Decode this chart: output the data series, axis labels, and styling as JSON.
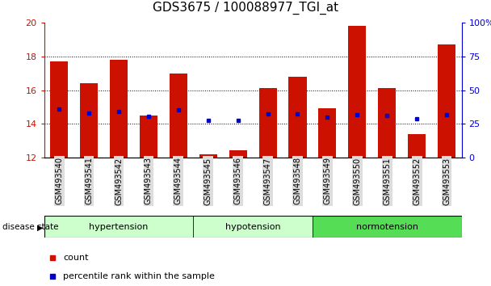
{
  "title": "GDS3675 / 100088977_TGI_at",
  "samples": [
    "GSM493540",
    "GSM493541",
    "GSM493542",
    "GSM493543",
    "GSM493544",
    "GSM493545",
    "GSM493546",
    "GSM493547",
    "GSM493548",
    "GSM493549",
    "GSM493550",
    "GSM493551",
    "GSM493552",
    "GSM493553"
  ],
  "red_values": [
    17.7,
    16.4,
    17.8,
    14.5,
    17.0,
    12.2,
    12.4,
    16.1,
    16.8,
    14.9,
    19.8,
    16.1,
    13.4,
    18.7
  ],
  "blue_values": [
    14.85,
    14.65,
    14.75,
    14.45,
    14.8,
    14.2,
    14.2,
    14.6,
    14.6,
    14.4,
    14.55,
    14.5,
    14.3,
    14.55
  ],
  "ymin": 12,
  "ymax": 20,
  "yticks": [
    12,
    14,
    16,
    18,
    20
  ],
  "right_yticks": [
    0,
    25,
    50,
    75,
    100
  ],
  "bar_color": "#cc1100",
  "blue_color": "#0000cc",
  "baseline": 12,
  "title_fontsize": 11,
  "tick_label_fontsize": 7,
  "legend_fontsize": 8,
  "left_axis_color": "#cc1100",
  "right_axis_color": "#0000cc",
  "bg_color": "#ffffff",
  "hypertension_color": "#ccffcc",
  "hypotension_color": "#ccffcc",
  "normotension_color": "#55dd55",
  "groups": [
    {
      "label": "hypertension",
      "start": 0,
      "end": 4,
      "color": "#ccffcc"
    },
    {
      "label": "hypotension",
      "start": 5,
      "end": 8,
      "color": "#ccffcc"
    },
    {
      "label": "normotension",
      "start": 9,
      "end": 13,
      "color": "#55dd55"
    }
  ]
}
